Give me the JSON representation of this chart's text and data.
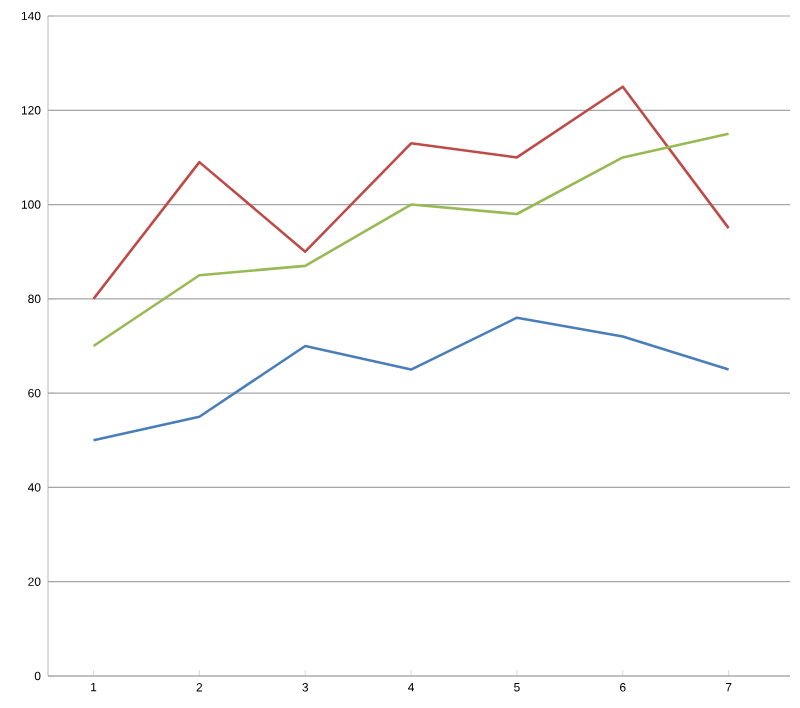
{
  "chart_data": {
    "type": "line",
    "categories": [
      "1",
      "2",
      "3",
      "4",
      "5",
      "6",
      "7"
    ],
    "series": [
      {
        "color": "#4a7ebb",
        "values": [
          50,
          55,
          70,
          65,
          76,
          72,
          65
        ]
      },
      {
        "color": "#be4b48",
        "values": [
          80,
          109,
          90,
          113,
          110,
          125,
          95
        ]
      },
      {
        "color": "#98b954",
        "values": [
          70,
          85,
          87,
          100,
          98,
          110,
          115
        ]
      }
    ],
    "ylim": [
      0,
      140
    ],
    "yticks": [
      0,
      20,
      40,
      60,
      80,
      100,
      120,
      140
    ],
    "grid": "y",
    "marker": "none",
    "line_style": "solid"
  }
}
